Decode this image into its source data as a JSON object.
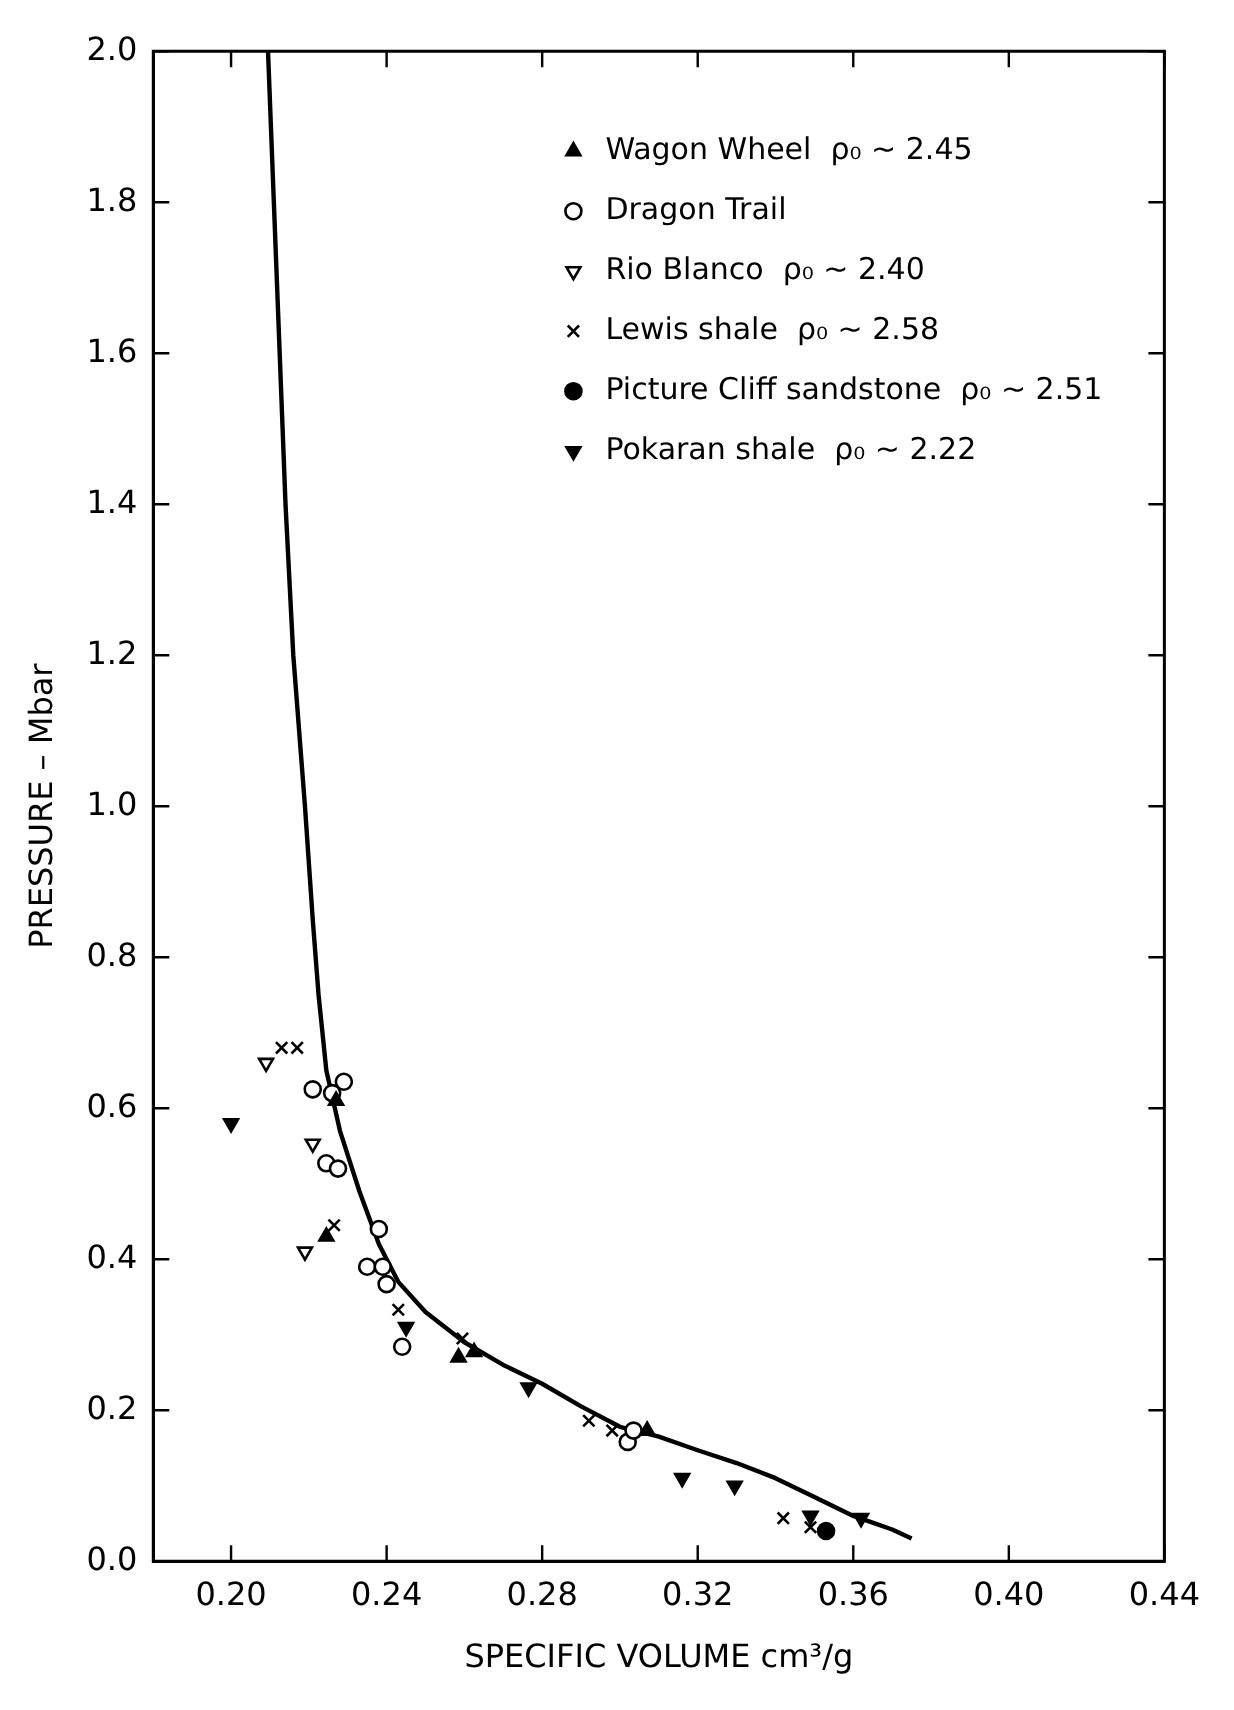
{
  "chart_data": {
    "type": "scatter",
    "xlabel": "SPECIFIC VOLUME cm³/g",
    "ylabel": "PRESSURE – Mbar",
    "xlim": [
      0.18,
      0.44
    ],
    "xticks": [
      {
        "value": 0.2,
        "label": "0.20"
      },
      {
        "value": 0.24,
        "label": "0.24"
      },
      {
        "value": 0.28,
        "label": "0.28"
      },
      {
        "value": 0.32,
        "label": "0.32"
      },
      {
        "value": 0.36,
        "label": "0.36"
      },
      {
        "value": 0.4,
        "label": "0.40"
      },
      {
        "value": 0.44,
        "label": "0.44"
      }
    ],
    "ylim": [
      0,
      2
    ],
    "yticks": [
      {
        "value": 0,
        "label": "0.0"
      },
      {
        "value": 0.2,
        "label": "0.2"
      },
      {
        "value": 0.4,
        "label": "0.4"
      },
      {
        "value": 0.6,
        "label": "0.6"
      },
      {
        "value": 0.8,
        "label": "0.8"
      },
      {
        "value": 1,
        "label": "1.0"
      },
      {
        "value": 1.2,
        "label": "1.2"
      },
      {
        "value": 1.4,
        "label": "1.4"
      },
      {
        "value": 1.6,
        "label": "1.6"
      },
      {
        "value": 1.8,
        "label": "1.8"
      },
      {
        "value": 2,
        "label": "2.0"
      }
    ],
    "grid": false,
    "legend": "top right",
    "series": [
      {
        "name": "Wagon Wheel  ρ₀ ~ 2.45",
        "color": "#000000",
        "marker": "triangle-filled",
        "x": [
          0.227,
          0.2245,
          0.2585,
          0.2625,
          0.307
        ],
        "values": [
          0.61,
          0.43,
          0.27,
          0.277,
          0.173
        ]
      },
      {
        "name": "Dragon Trail",
        "color": "#000000",
        "marker": "circle",
        "x": [
          0.221,
          0.229,
          0.226,
          0.2245,
          0.2275,
          0.238,
          0.235,
          0.239,
          0.24,
          0.244,
          0.302,
          0.3035
        ],
        "values": [
          0.625,
          0.635,
          0.62,
          0.527,
          0.52,
          0.44,
          0.39,
          0.39,
          0.367,
          0.284,
          0.158,
          0.173
        ]
      },
      {
        "name": "Rio Blanco  ρ₀ ~ 2.40",
        "color": "#000000",
        "marker": "triangle-down",
        "x": [
          0.209,
          0.221,
          0.219
        ],
        "values": [
          0.66,
          0.553,
          0.41
        ]
      },
      {
        "name": "Lewis shale  ρ₀ ~ 2.58",
        "color": "#000000",
        "marker": "cross",
        "x": [
          0.213,
          0.217,
          0.2265,
          0.243,
          0.2595,
          0.292,
          0.298,
          0.342,
          0.349
        ],
        "values": [
          0.68,
          0.68,
          0.445,
          0.333,
          0.295,
          0.186,
          0.173,
          0.057,
          0.045
        ]
      },
      {
        "name": "Picture Cliff sandstone  ρ₀ ~ 2.51",
        "color": "#000000",
        "marker": "circle-filled",
        "x": [
          0.353
        ],
        "values": [
          0.04
        ]
      },
      {
        "name": "Pokaran shale  ρ₀ ~ 2.22",
        "color": "#000000",
        "marker": "triangle-down-filled",
        "x": [
          0.2,
          0.245,
          0.2765,
          0.316,
          0.3295,
          0.349,
          0.362
        ],
        "values": [
          0.58,
          0.31,
          0.23,
          0.11,
          0.1,
          0.06,
          0.057
        ]
      },
      {
        "type": "line",
        "color": "#000000",
        "marker": "none",
        "x": [
          0.2095,
          0.211,
          0.2125,
          0.214,
          0.216,
          0.219,
          0.221,
          0.2225,
          0.2245,
          0.228,
          0.233,
          0.238,
          0.243,
          0.25,
          0.26,
          0.27,
          0.28,
          0.29,
          0.3,
          0.31,
          0.32,
          0.33,
          0.34,
          0.35,
          0.36,
          0.37,
          0.375
        ],
        "values": [
          2.0,
          1.8,
          1.6,
          1.4,
          1.2,
          1.0,
          0.85,
          0.75,
          0.65,
          0.57,
          0.49,
          0.42,
          0.37,
          0.33,
          0.29,
          0.26,
          0.235,
          0.205,
          0.178,
          0.165,
          0.147,
          0.13,
          0.11,
          0.085,
          0.06,
          0.042,
          0.03
        ]
      }
    ]
  }
}
